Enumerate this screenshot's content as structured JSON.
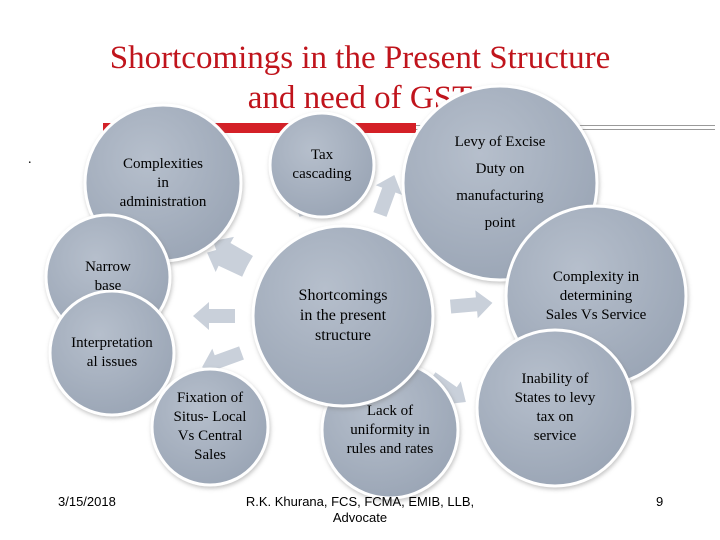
{
  "slide": {
    "title_line1": "Shortcomings in the Present Structure",
    "title_line2": "and need of GST",
    "bullet": "."
  },
  "diagram": {
    "center": "Shortcomings in the present structure",
    "nodes": [
      "Complexities in administration",
      "Tax cascading",
      "Levy of Excise Duty on manufacturing point",
      "Narrow base",
      "Complexity in determining Sales Vs Service",
      "Interpretation al issues",
      "Inability of States to levy tax on service",
      "Fixation of Situs- Local Vs Central Sales",
      "Lack of uniformity in rules and rates"
    ],
    "colors": {
      "circle_fill": "#a9b3c1",
      "circle_stroke": "#ffffff",
      "arrow": "#c9d0da"
    }
  },
  "footer": {
    "date": "3/15/2018",
    "author_line1": "R.K. Khurana, FCS, FCMA, EMIB, LLB,",
    "author_line2": "Advocate",
    "page": "9"
  }
}
